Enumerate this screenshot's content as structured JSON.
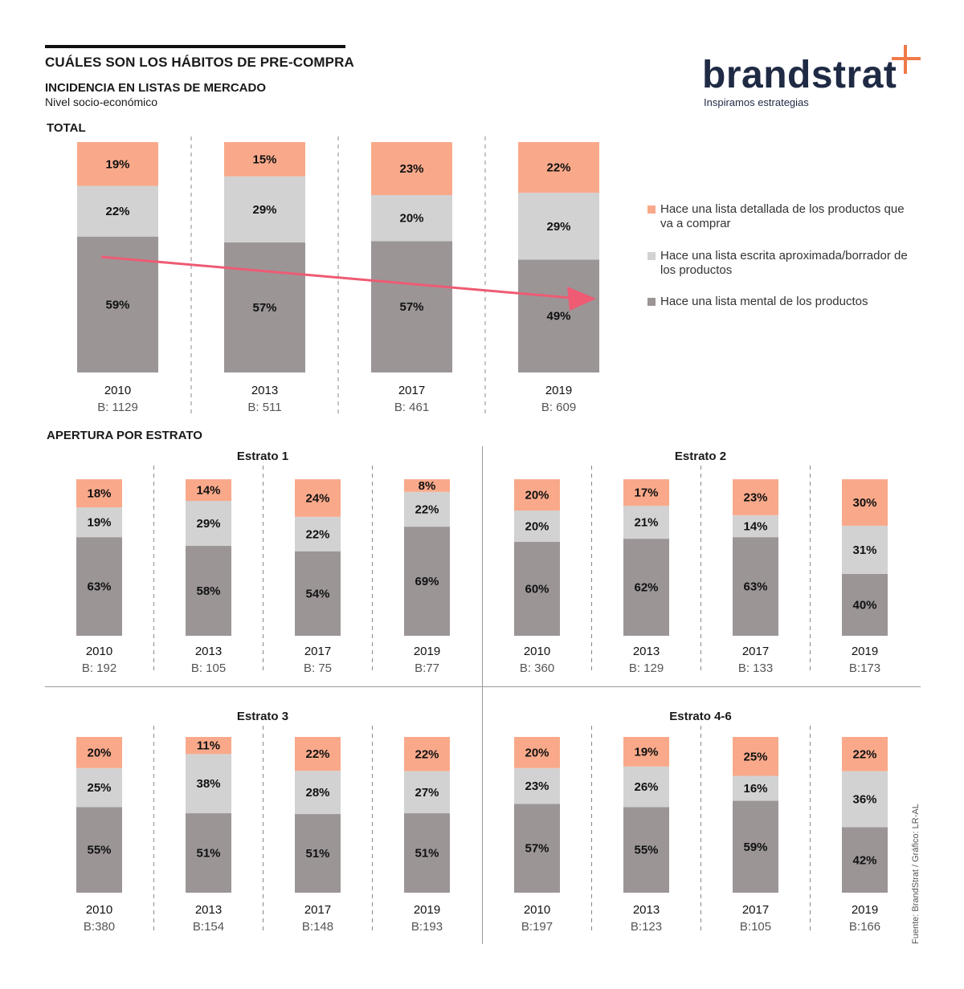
{
  "header": {
    "title": "CUÁLES SON LOS HÁBITOS DE PRE-COMPRA",
    "subtitle": "INCIDENCIA EN LISTAS DE MERCADO",
    "subtitle2": "Nivel socio-económico",
    "total_label": "TOTAL",
    "apertura_label": "APERTURA POR ESTRATO"
  },
  "logo": {
    "name": "brandstrat",
    "tagline": "Inspiramos estrategias"
  },
  "legend": [
    {
      "label": "Hace una lista detallada de los productos que va a comprar",
      "color": "#f9a98a"
    },
    {
      "label": "Hace una lista escrita aproximada/borrador de los productos",
      "color": "#d3d2d2"
    },
    {
      "label": "Hace una lista mental de los productos",
      "color": "#9b9596"
    }
  ],
  "source": "Fuente: BrandStrat / Gráfico: LR-AL",
  "chart_data": [
    {
      "type": "bar",
      "stacked": true,
      "title": "TOTAL",
      "categories": [
        "2010",
        "2013",
        "2017",
        "2019"
      ],
      "bases": [
        "B: 1129",
        "B: 511",
        "B: 461",
        "B: 609"
      ],
      "series": [
        {
          "name": "Hace una lista mental de los productos",
          "values": [
            59,
            57,
            57,
            49
          ],
          "labels": [
            "59%",
            "57%",
            "57%",
            "49%"
          ]
        },
        {
          "name": "Hace una lista escrita aproximada/borrador de los productos",
          "values": [
            22,
            29,
            20,
            29
          ],
          "labels": [
            "22%",
            "29%",
            "20%",
            "29%"
          ]
        },
        {
          "name": "Hace una lista detallada de los productos que va a comprar",
          "values": [
            19,
            15,
            23,
            22
          ],
          "labels": [
            "19%",
            "15%",
            "23%",
            "22%"
          ]
        }
      ],
      "annotations": [
        "trend arrow: declining mental list from 2010 to 2019"
      ]
    },
    {
      "type": "bar",
      "stacked": true,
      "title": "Estrato 1",
      "categories": [
        "2010",
        "2013",
        "2017",
        "2019"
      ],
      "bases": [
        "B: 192",
        "B: 105",
        "B: 75",
        "B:77"
      ],
      "series": [
        {
          "name": "Hace una lista mental de los productos",
          "values": [
            63,
            58,
            54,
            69
          ],
          "labels": [
            "63%",
            "58%",
            "54%",
            "69%"
          ]
        },
        {
          "name": "Hace una lista escrita aproximada/borrador de los productos",
          "values": [
            19,
            29,
            22,
            22
          ],
          "labels": [
            "19%",
            "29%",
            "22%",
            "22%"
          ]
        },
        {
          "name": "Hace una lista detallada de los productos que va a comprar",
          "values": [
            18,
            14,
            24,
            8
          ],
          "labels": [
            "18%",
            "14%",
            "24%",
            "8%"
          ]
        }
      ]
    },
    {
      "type": "bar",
      "stacked": true,
      "title": "Estrato 2",
      "categories": [
        "2010",
        "2013",
        "2017",
        "2019"
      ],
      "bases": [
        "B: 360",
        "B: 129",
        "B: 133",
        "B:173"
      ],
      "series": [
        {
          "name": "Hace una lista mental de los productos",
          "values": [
            60,
            62,
            63,
            40
          ],
          "labels": [
            "60%",
            "62%",
            "63%",
            "40%"
          ]
        },
        {
          "name": "Hace una lista escrita aproximada/borrador de los productos",
          "values": [
            20,
            21,
            14,
            31
          ],
          "labels": [
            "20%",
            "21%",
            "14%",
            "31%"
          ]
        },
        {
          "name": "Hace una lista detallada de los productos que va a comprar",
          "values": [
            20,
            17,
            23,
            30
          ],
          "labels": [
            "20%",
            "17%",
            "23%",
            "30%"
          ]
        }
      ]
    },
    {
      "type": "bar",
      "stacked": true,
      "title": "Estrato 3",
      "categories": [
        "2010",
        "2013",
        "2017",
        "2019"
      ],
      "bases": [
        "B:380",
        "B:154",
        "B:148",
        "B:193"
      ],
      "series": [
        {
          "name": "Hace una lista mental de los productos",
          "values": [
            55,
            51,
            51,
            51
          ],
          "labels": [
            "55%",
            "51%",
            "51%",
            "51%"
          ]
        },
        {
          "name": "Hace una lista escrita aproximada/borrador de los productos",
          "values": [
            25,
            38,
            28,
            27
          ],
          "labels": [
            "25%",
            "38%",
            "28%",
            "27%"
          ]
        },
        {
          "name": "Hace una lista detallada de los productos que va a comprar",
          "values": [
            20,
            11,
            22,
            22
          ],
          "labels": [
            "20%",
            "11%",
            "22%",
            "22%"
          ]
        }
      ]
    },
    {
      "type": "bar",
      "stacked": true,
      "title": "Estrato 4-6",
      "categories": [
        "2010",
        "2013",
        "2017",
        "2019"
      ],
      "bases": [
        "B:197",
        "B:123",
        "B:105",
        "B:166"
      ],
      "series": [
        {
          "name": "Hace una lista mental de los productos",
          "values": [
            57,
            55,
            59,
            42
          ],
          "labels": [
            "57%",
            "55%",
            "59%",
            "42%"
          ]
        },
        {
          "name": "Hace una lista escrita aproximada/borrador de los productos",
          "values": [
            23,
            26,
            16,
            36
          ],
          "labels": [
            "23%",
            "26%",
            "16%",
            "36%"
          ]
        },
        {
          "name": "Hace una lista detallada de los productos que va a comprar",
          "values": [
            20,
            19,
            25,
            22
          ],
          "labels": [
            "20%",
            "19%",
            "25%",
            "22%"
          ]
        }
      ]
    }
  ]
}
